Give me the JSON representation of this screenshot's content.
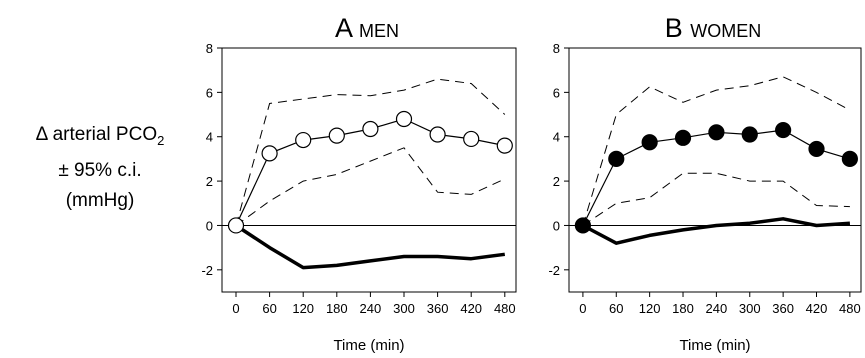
{
  "y_axis_label": {
    "line1_prefix": "Δ arterial PCO",
    "line1_sub": "2",
    "line2": "± 95% c.i.",
    "line3": "(mmHg)"
  },
  "chart_data": [
    {
      "type": "line",
      "panel_letter": "A",
      "title": "MEN",
      "xlabel": "Time (min)",
      "x": [
        0,
        60,
        120,
        180,
        240,
        300,
        360,
        420,
        480
      ],
      "xlim": [
        -25,
        500
      ],
      "ylim": [
        -3,
        8
      ],
      "yticks": [
        -2,
        0,
        2,
        4,
        6,
        8
      ],
      "marker_fill": "#ffffff",
      "series": [
        {
          "role": "mean",
          "values": [
            0,
            3.25,
            3.85,
            4.05,
            4.35,
            4.8,
            4.1,
            3.9,
            3.6
          ]
        },
        {
          "role": "upper_ci",
          "values": [
            0,
            5.5,
            5.7,
            5.9,
            5.85,
            6.1,
            6.6,
            6.4,
            5.0
          ]
        },
        {
          "role": "lower_ci",
          "values": [
            0,
            1.1,
            2.0,
            2.3,
            2.9,
            3.5,
            1.5,
            1.4,
            2.1
          ]
        },
        {
          "role": "other",
          "values": [
            0,
            -1.0,
            -1.9,
            -1.8,
            -1.6,
            -1.4,
            -1.4,
            -1.5,
            -1.3
          ]
        }
      ]
    },
    {
      "type": "line",
      "panel_letter": "B",
      "title": "WOMEN",
      "xlabel": "Time (min)",
      "x": [
        0,
        60,
        120,
        180,
        240,
        300,
        360,
        420,
        480
      ],
      "xlim": [
        -25,
        500
      ],
      "ylim": [
        -3,
        8
      ],
      "yticks": [
        -2,
        0,
        2,
        4,
        6,
        8
      ],
      "marker_fill": "#000000",
      "series": [
        {
          "role": "mean",
          "values": [
            0,
            3.0,
            3.75,
            3.95,
            4.2,
            4.1,
            4.3,
            3.45,
            3.0
          ]
        },
        {
          "role": "upper_ci",
          "values": [
            0,
            5.0,
            6.25,
            5.55,
            6.1,
            6.3,
            6.7,
            6.0,
            5.2
          ]
        },
        {
          "role": "lower_ci",
          "values": [
            0,
            1.0,
            1.25,
            2.35,
            2.35,
            2.0,
            2.0,
            0.9,
            0.85
          ]
        },
        {
          "role": "other",
          "values": [
            0,
            -0.8,
            -0.45,
            -0.2,
            0.0,
            0.1,
            0.3,
            0.0,
            0.1
          ]
        }
      ]
    }
  ]
}
